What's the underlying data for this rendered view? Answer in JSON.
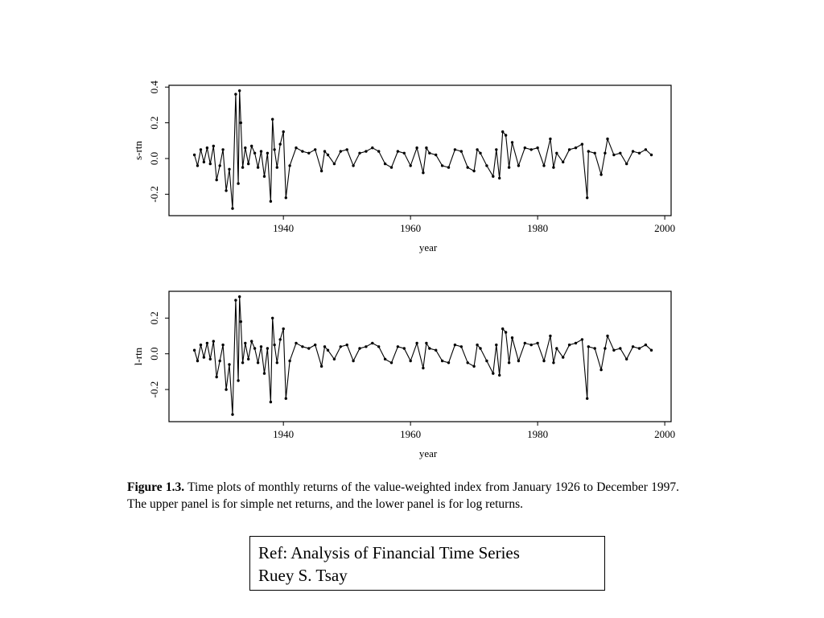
{
  "figure": {
    "caption_label": "Figure 1.3.",
    "caption_text": "Time plots of monthly returns of the value-weighted index from January 1926 to December 1997. The upper panel is for simple net returns, and the lower panel is for log returns."
  },
  "reference": {
    "line1": "Ref:  Analysis of Financial Time Series",
    "line2": "Ruey S. Tsay"
  },
  "style": {
    "line_color": "#000000",
    "frame_color": "#000000",
    "background": "#ffffff"
  },
  "chart_data": [
    {
      "type": "line",
      "ylabel": "s-rtn",
      "xlabel": "year",
      "xlim": [
        1922,
        2001
      ],
      "ylim": [
        -0.32,
        0.41
      ],
      "xticks": [
        1940,
        1960,
        1980,
        2000
      ],
      "yticks": [
        -0.2,
        0.0,
        0.2,
        0.4
      ],
      "ytick_labels": [
        "-0.2",
        "0.0",
        "0.2",
        "0.4"
      ],
      "markers": true,
      "grid": false,
      "series": [
        {
          "x": [
            1926.0,
            1926.5,
            1927.0,
            1927.5,
            1928.0,
            1928.5,
            1929.0,
            1929.5,
            1930.0,
            1930.5,
            1931.0,
            1931.5,
            1932.0,
            1932.5,
            1932.9,
            1933.1,
            1933.3,
            1933.6,
            1934.0,
            1934.5,
            1935.0,
            1935.5,
            1936.0,
            1936.5,
            1937.0,
            1937.5,
            1938.0,
            1938.3,
            1938.6,
            1939.0,
            1939.5,
            1940.0,
            1940.4,
            1941.0,
            1942.0,
            1943.0,
            1944.0,
            1945.0,
            1946.0,
            1946.5,
            1947.0,
            1948.0,
            1949.0,
            1950.0,
            1951.0,
            1952.0,
            1953.0,
            1954.0,
            1955.0,
            1956.0,
            1957.0,
            1958.0,
            1959.0,
            1960.0,
            1961.0,
            1962.0,
            1962.5,
            1963.0,
            1964.0,
            1965.0,
            1966.0,
            1967.0,
            1968.0,
            1969.0,
            1970.0,
            1970.5,
            1971.0,
            1972.0,
            1973.0,
            1973.5,
            1974.0,
            1974.5,
            1975.0,
            1975.5,
            1976.0,
            1977.0,
            1978.0,
            1979.0,
            1980.0,
            1981.0,
            1982.0,
            1982.5,
            1983.0,
            1984.0,
            1985.0,
            1986.0,
            1987.0,
            1987.8,
            1988.0,
            1989.0,
            1990.0,
            1990.6,
            1991.0,
            1992.0,
            1993.0,
            1994.0,
            1995.0,
            1996.0,
            1997.0,
            1997.9
          ],
          "y": [
            0.02,
            -0.04,
            0.05,
            -0.02,
            0.06,
            -0.03,
            0.07,
            -0.12,
            -0.04,
            0.05,
            -0.18,
            -0.06,
            -0.28,
            0.36,
            -0.14,
            0.38,
            0.2,
            -0.05,
            0.06,
            -0.03,
            0.07,
            0.03,
            -0.05,
            0.04,
            -0.1,
            0.03,
            -0.24,
            0.22,
            0.05,
            -0.05,
            0.08,
            0.15,
            -0.22,
            -0.04,
            0.06,
            0.04,
            0.03,
            0.05,
            -0.07,
            0.04,
            0.02,
            -0.03,
            0.04,
            0.05,
            -0.04,
            0.03,
            0.04,
            0.06,
            0.04,
            -0.03,
            -0.05,
            0.04,
            0.03,
            -0.04,
            0.06,
            -0.08,
            0.06,
            0.03,
            0.02,
            -0.04,
            -0.05,
            0.05,
            0.04,
            -0.05,
            -0.07,
            0.05,
            0.03,
            -0.04,
            -0.1,
            0.05,
            -0.11,
            0.15,
            0.13,
            -0.05,
            0.09,
            -0.04,
            0.06,
            0.05,
            0.06,
            -0.04,
            0.11,
            -0.05,
            0.03,
            -0.02,
            0.05,
            0.06,
            0.08,
            -0.22,
            0.04,
            0.03,
            -0.09,
            0.03,
            0.11,
            0.02,
            0.03,
            -0.03,
            0.04,
            0.03,
            0.05,
            0.02
          ]
        }
      ]
    },
    {
      "type": "line",
      "ylabel": "l-rtn",
      "xlabel": "year",
      "xlim": [
        1922,
        2001
      ],
      "ylim": [
        -0.38,
        0.35
      ],
      "xticks": [
        1940,
        1960,
        1980,
        2000
      ],
      "yticks": [
        -0.2,
        0.0,
        0.2
      ],
      "ytick_labels": [
        "-0.2",
        "0.0",
        "0.2"
      ],
      "markers": true,
      "grid": false,
      "series": [
        {
          "x": [
            1926.0,
            1926.5,
            1927.0,
            1927.5,
            1928.0,
            1928.5,
            1929.0,
            1929.5,
            1930.0,
            1930.5,
            1931.0,
            1931.5,
            1932.0,
            1932.5,
            1932.9,
            1933.1,
            1933.3,
            1933.6,
            1934.0,
            1934.5,
            1935.0,
            1935.5,
            1936.0,
            1936.5,
            1937.0,
            1937.5,
            1938.0,
            1938.3,
            1938.6,
            1939.0,
            1939.5,
            1940.0,
            1940.4,
            1941.0,
            1942.0,
            1943.0,
            1944.0,
            1945.0,
            1946.0,
            1946.5,
            1947.0,
            1948.0,
            1949.0,
            1950.0,
            1951.0,
            1952.0,
            1953.0,
            1954.0,
            1955.0,
            1956.0,
            1957.0,
            1958.0,
            1959.0,
            1960.0,
            1961.0,
            1962.0,
            1962.5,
            1963.0,
            1964.0,
            1965.0,
            1966.0,
            1967.0,
            1968.0,
            1969.0,
            1970.0,
            1970.5,
            1971.0,
            1972.0,
            1973.0,
            1973.5,
            1974.0,
            1974.5,
            1975.0,
            1975.5,
            1976.0,
            1977.0,
            1978.0,
            1979.0,
            1980.0,
            1981.0,
            1982.0,
            1982.5,
            1983.0,
            1984.0,
            1985.0,
            1986.0,
            1987.0,
            1987.8,
            1988.0,
            1989.0,
            1990.0,
            1990.6,
            1991.0,
            1992.0,
            1993.0,
            1994.0,
            1995.0,
            1996.0,
            1997.0,
            1997.9
          ],
          "y": [
            0.02,
            -0.04,
            0.05,
            -0.02,
            0.06,
            -0.03,
            0.07,
            -0.13,
            -0.04,
            0.05,
            -0.2,
            -0.06,
            -0.34,
            0.3,
            -0.15,
            0.32,
            0.18,
            -0.05,
            0.06,
            -0.03,
            0.07,
            0.03,
            -0.05,
            0.04,
            -0.11,
            0.03,
            -0.27,
            0.2,
            0.05,
            -0.05,
            0.08,
            0.14,
            -0.25,
            -0.04,
            0.06,
            0.04,
            0.03,
            0.05,
            -0.07,
            0.04,
            0.02,
            -0.03,
            0.04,
            0.05,
            -0.04,
            0.03,
            0.04,
            0.06,
            0.04,
            -0.03,
            -0.05,
            0.04,
            0.03,
            -0.04,
            0.06,
            -0.08,
            0.06,
            0.03,
            0.02,
            -0.04,
            -0.05,
            0.05,
            0.04,
            -0.05,
            -0.07,
            0.05,
            0.03,
            -0.04,
            -0.11,
            0.05,
            -0.12,
            0.14,
            0.12,
            -0.05,
            0.09,
            -0.04,
            0.06,
            0.05,
            0.06,
            -0.04,
            0.1,
            -0.05,
            0.03,
            -0.02,
            0.05,
            0.06,
            0.08,
            -0.25,
            0.04,
            0.03,
            -0.09,
            0.03,
            0.1,
            0.02,
            0.03,
            -0.03,
            0.04,
            0.03,
            0.05,
            0.02
          ]
        }
      ]
    }
  ]
}
